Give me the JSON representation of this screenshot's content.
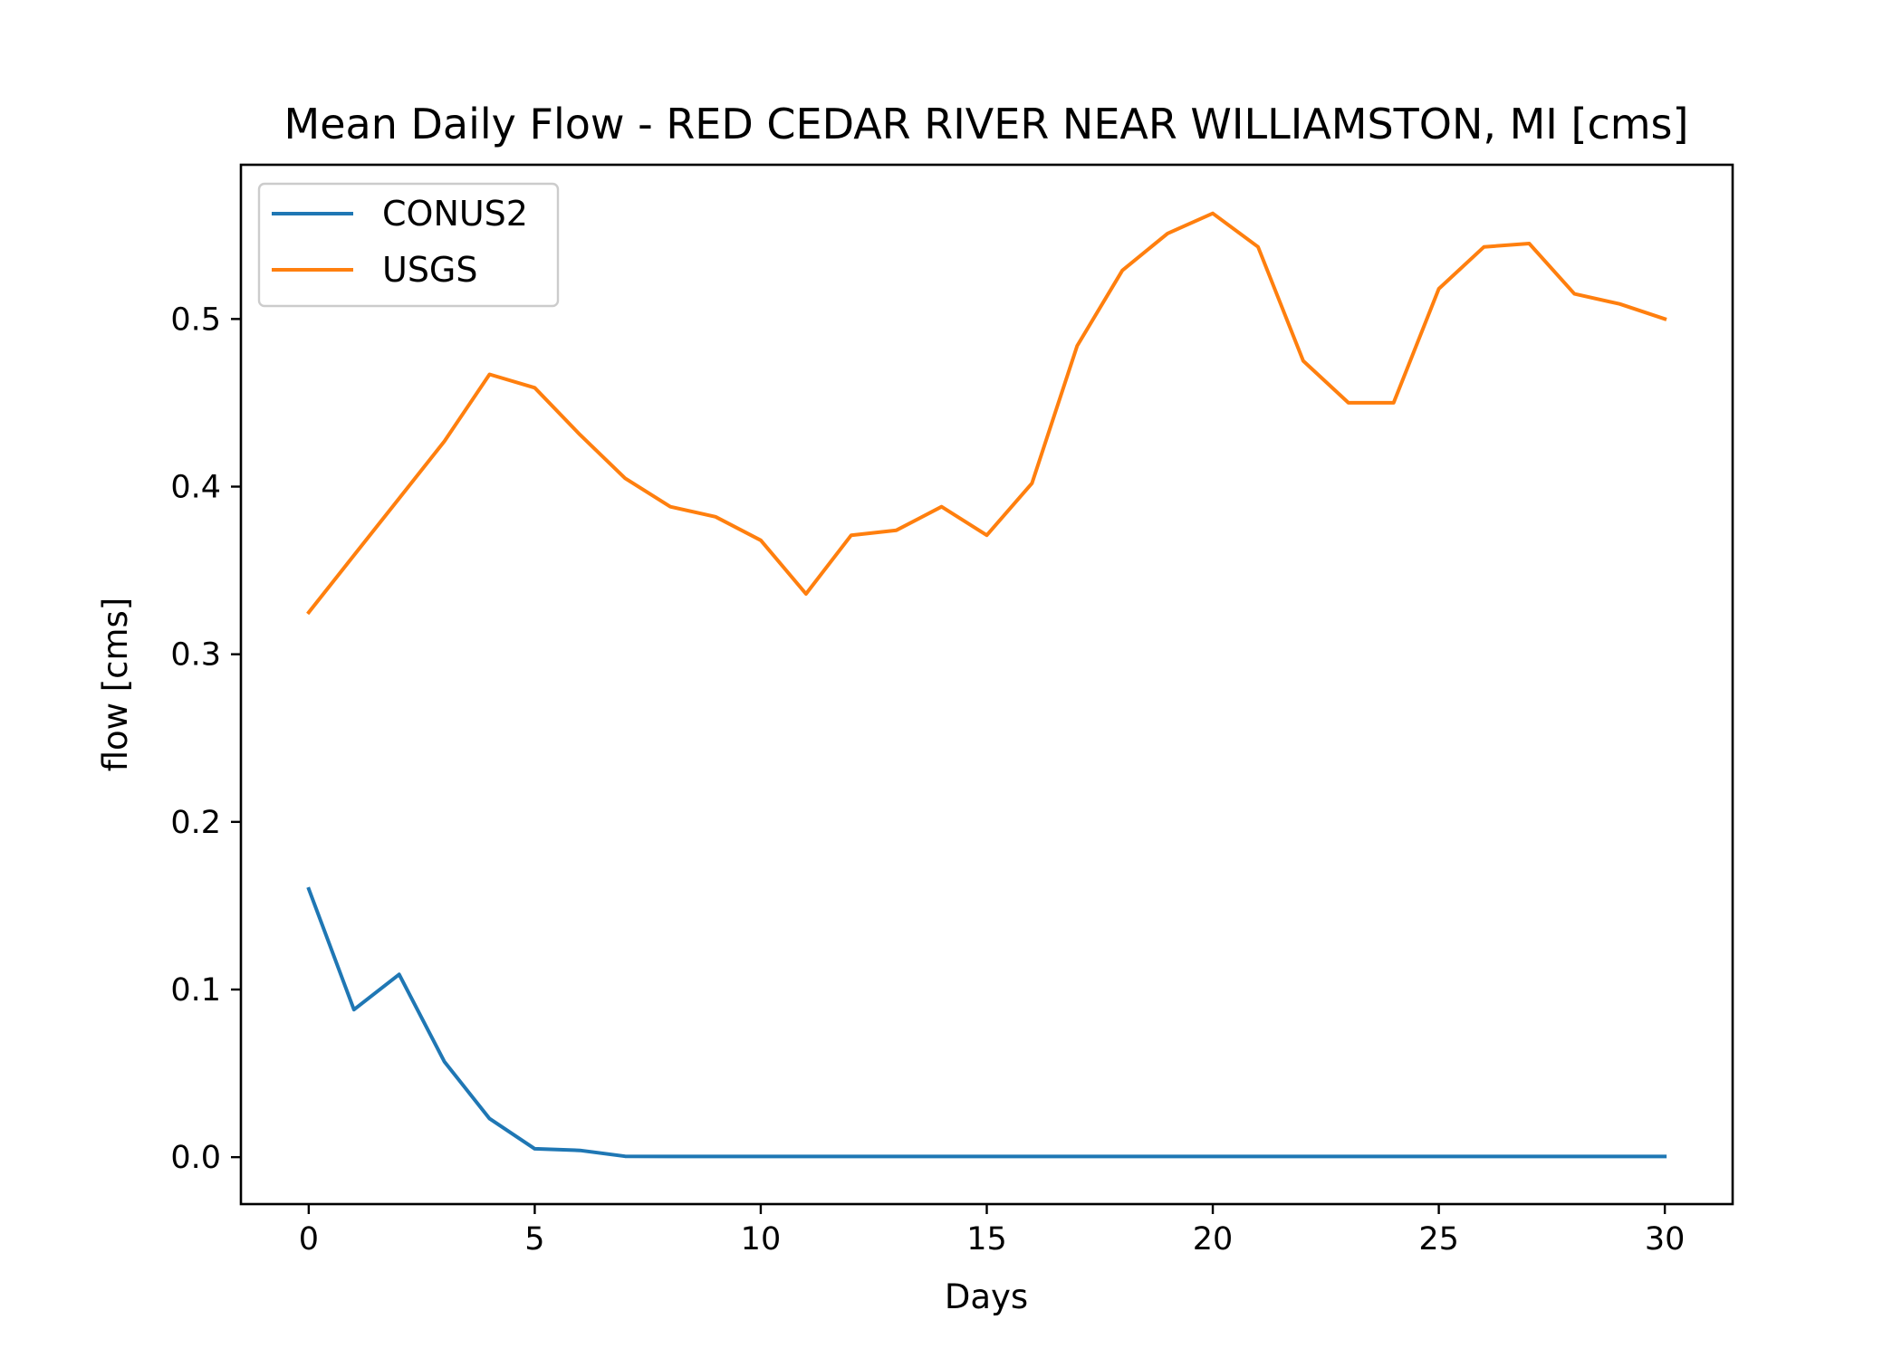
{
  "chart_data": {
    "type": "line",
    "title": "Mean Daily Flow - RED CEDAR RIVER NEAR WILLIAMSTON, MI [cms]",
    "xlabel": "Days",
    "ylabel": "flow [cms]",
    "xlim": [
      -1.5,
      31.5
    ],
    "ylim": [
      -0.028,
      0.592
    ],
    "xticks": [
      "0",
      "5",
      "10",
      "15",
      "20",
      "25",
      "30"
    ],
    "yticks": [
      "0.0",
      "0.1",
      "0.2",
      "0.3",
      "0.4",
      "0.5"
    ],
    "grid": false,
    "legend_position": "top-left",
    "x": [
      0,
      1,
      2,
      3,
      4,
      5,
      6,
      7,
      8,
      9,
      10,
      11,
      12,
      13,
      14,
      15,
      16,
      17,
      18,
      19,
      20,
      21,
      22,
      23,
      24,
      25,
      26,
      27,
      28,
      29,
      30
    ],
    "series": [
      {
        "name": "CONUS2",
        "color": "#1f77b4",
        "values": [
          0.16,
          0.088,
          0.109,
          0.057,
          0.023,
          0.005,
          0.004,
          0.0005,
          0.0004,
          0.0004,
          0.0004,
          0.0004,
          0.0004,
          0.0004,
          0.0004,
          0.0004,
          0.0004,
          0.0004,
          0.0004,
          0.0004,
          0.0004,
          0.0004,
          0.0004,
          0.0004,
          0.0004,
          0.0004,
          0.0004,
          0.0004,
          0.0004,
          0.0004,
          0.0004
        ]
      },
      {
        "name": "USGS",
        "color": "#ff7f0e",
        "values": [
          0.325,
          0.359,
          0.393,
          0.427,
          0.467,
          0.459,
          0.431,
          0.405,
          0.388,
          0.382,
          0.368,
          0.336,
          0.371,
          0.374,
          0.388,
          0.371,
          0.402,
          0.484,
          0.529,
          0.551,
          0.563,
          0.543,
          0.475,
          0.45,
          0.45,
          0.518,
          0.543,
          0.545,
          0.515,
          0.509,
          0.5
        ]
      }
    ]
  }
}
